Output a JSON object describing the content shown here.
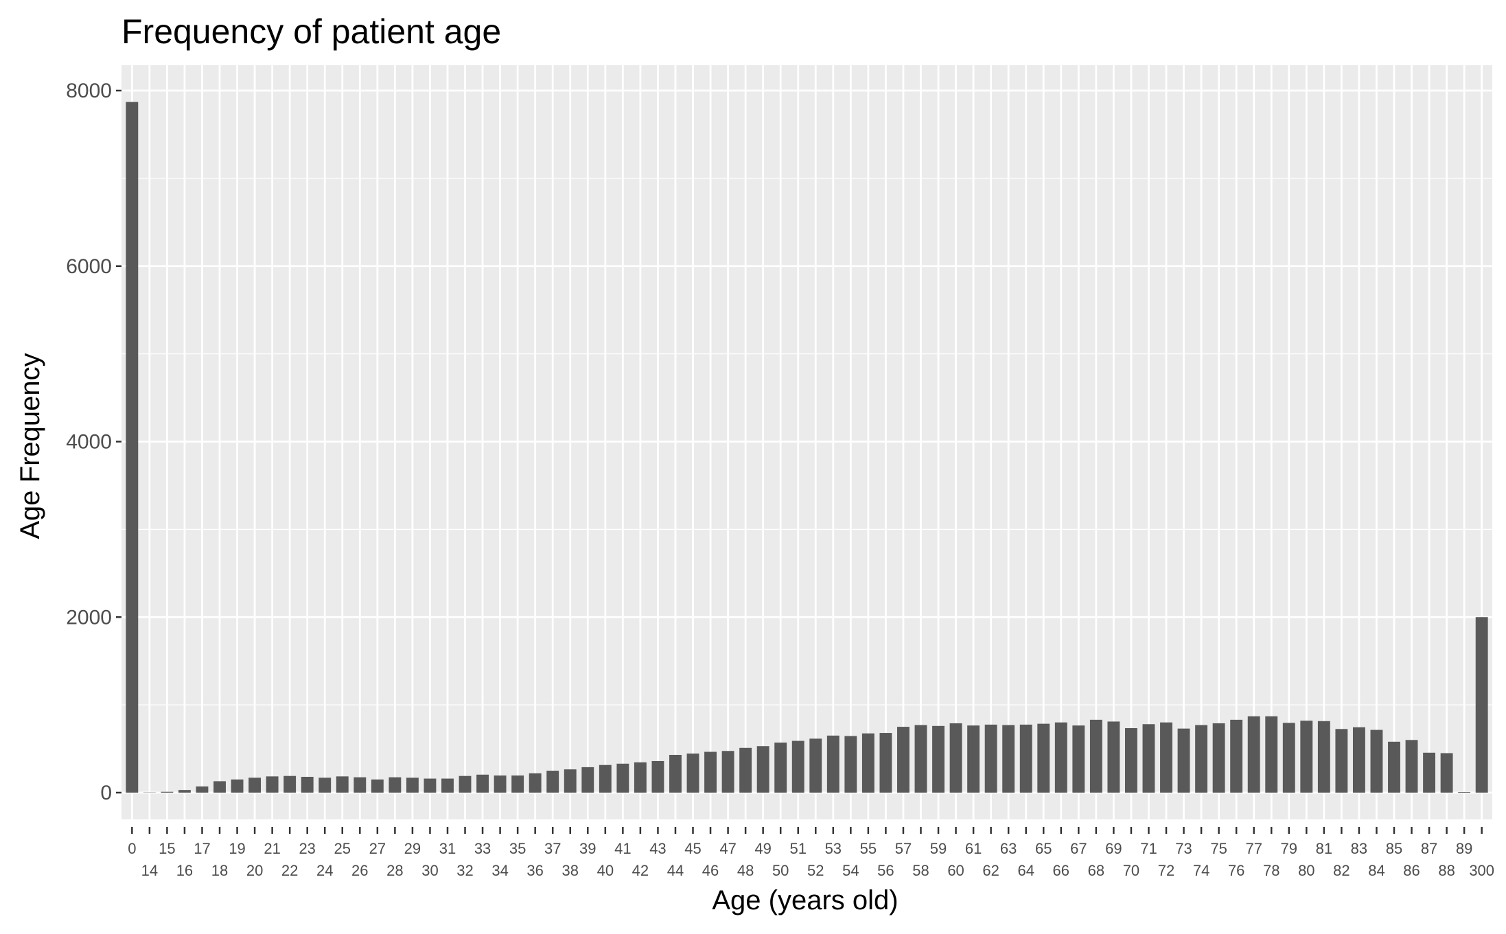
{
  "chart_data": {
    "type": "bar",
    "title": "Frequency of patient age",
    "xlabel": "Age (years old)",
    "ylabel": "Age Frequency",
    "ylim": [
      0,
      8000
    ],
    "yticks": [
      0,
      2000,
      4000,
      6000,
      8000
    ],
    "grid": true,
    "legend": "none",
    "colors": {
      "panel": "#EBEBEB",
      "grid": "#FFFFFF",
      "bar": "#595959",
      "axis_text": "#4D4D4D",
      "tick": "#333333"
    },
    "categories": [
      "0",
      "14",
      "15",
      "16",
      "17",
      "18",
      "19",
      "20",
      "21",
      "22",
      "23",
      "24",
      "25",
      "26",
      "27",
      "28",
      "29",
      "30",
      "31",
      "32",
      "33",
      "34",
      "35",
      "36",
      "37",
      "38",
      "39",
      "40",
      "41",
      "42",
      "43",
      "44",
      "45",
      "46",
      "47",
      "48",
      "49",
      "50",
      "51",
      "52",
      "53",
      "54",
      "55",
      "56",
      "57",
      "58",
      "59",
      "60",
      "61",
      "62",
      "63",
      "64",
      "65",
      "66",
      "67",
      "68",
      "69",
      "70",
      "71",
      "72",
      "73",
      "74",
      "75",
      "76",
      "77",
      "78",
      "79",
      "80",
      "81",
      "82",
      "83",
      "84",
      "85",
      "86",
      "87",
      "88",
      "89",
      "300"
    ],
    "values": [
      7870,
      3,
      10,
      30,
      70,
      130,
      150,
      170,
      185,
      190,
      180,
      170,
      185,
      175,
      150,
      175,
      170,
      160,
      160,
      190,
      205,
      195,
      195,
      220,
      250,
      265,
      290,
      315,
      330,
      345,
      360,
      430,
      445,
      465,
      475,
      510,
      530,
      570,
      590,
      615,
      650,
      645,
      675,
      680,
      750,
      770,
      760,
      790,
      765,
      775,
      770,
      775,
      785,
      800,
      765,
      830,
      810,
      735,
      780,
      800,
      730,
      770,
      790,
      830,
      870,
      870,
      795,
      820,
      815,
      725,
      745,
      715,
      580,
      600,
      455,
      450,
      8,
      2000
    ]
  }
}
